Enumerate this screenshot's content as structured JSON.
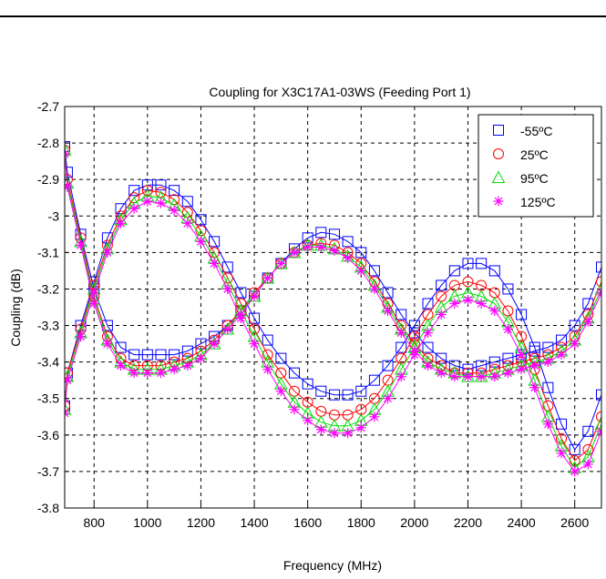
{
  "chart_data": {
    "type": "line",
    "title": "Coupling for X3C17A1-03WS (Feeding Port 1)",
    "xlabel": "Frequency (MHz)",
    "ylabel": "Coupling (dB)",
    "xlim": [
      690,
      2700
    ],
    "ylim": [
      -3.8,
      -2.7
    ],
    "xticks": [
      800,
      1000,
      1200,
      1400,
      1600,
      1800,
      2000,
      2200,
      2400,
      2600
    ],
    "yticks": [
      -2.7,
      -2.8,
      -2.9,
      -3,
      -3.1,
      -3.2,
      -3.3,
      -3.4,
      -3.5,
      -3.6,
      -3.7,
      -3.8
    ],
    "grid": true,
    "legend_position": "top-right",
    "x": [
      690,
      700,
      750,
      800,
      850,
      900,
      950,
      1000,
      1050,
      1100,
      1150,
      1200,
      1250,
      1300,
      1350,
      1400,
      1450,
      1500,
      1550,
      1600,
      1650,
      1700,
      1750,
      1800,
      1850,
      1900,
      1950,
      2000,
      2050,
      2100,
      2150,
      2200,
      2250,
      2300,
      2350,
      2400,
      2450,
      2500,
      2550,
      2600,
      2650,
      2700
    ],
    "series": [
      {
        "name": "-55ºC",
        "marker": "square",
        "color": "#0000ff",
        "traces": [
          [
            -2.81,
            -2.88,
            -3.05,
            -3.2,
            -3.3,
            -3.36,
            -3.38,
            -3.38,
            -3.38,
            -3.38,
            -3.37,
            -3.35,
            -3.33,
            -3.3,
            -3.26,
            -3.22,
            -3.17,
            -3.13,
            -3.09,
            -3.06,
            -3.045,
            -3.05,
            -3.07,
            -3.1,
            -3.15,
            -3.21,
            -3.27,
            -3.32,
            -3.36,
            -3.39,
            -3.41,
            -3.42,
            -3.41,
            -3.4,
            -3.39,
            -3.38,
            -3.37,
            -3.36,
            -3.34,
            -3.3,
            -3.24,
            -3.14
          ],
          [
            -3.52,
            -3.43,
            -3.3,
            -3.18,
            -3.06,
            -2.98,
            -2.93,
            -2.915,
            -2.915,
            -2.93,
            -2.96,
            -3.01,
            -3.07,
            -3.14,
            -3.21,
            -3.28,
            -3.34,
            -3.39,
            -3.43,
            -3.46,
            -3.48,
            -3.49,
            -3.49,
            -3.48,
            -3.45,
            -3.41,
            -3.36,
            -3.3,
            -3.24,
            -3.19,
            -3.15,
            -3.13,
            -3.13,
            -3.15,
            -3.2,
            -3.27,
            -3.36,
            -3.47,
            -3.57,
            -3.64,
            -3.59,
            -3.49
          ]
        ]
      },
      {
        "name": "25ºC",
        "marker": "circle",
        "color": "#ff0000",
        "traces": [
          [
            -2.82,
            -2.9,
            -3.06,
            -3.22,
            -3.33,
            -3.39,
            -3.41,
            -3.41,
            -3.41,
            -3.4,
            -3.39,
            -3.37,
            -3.34,
            -3.3,
            -3.26,
            -3.21,
            -3.17,
            -3.13,
            -3.1,
            -3.08,
            -3.075,
            -3.08,
            -3.1,
            -3.13,
            -3.18,
            -3.24,
            -3.3,
            -3.35,
            -3.39,
            -3.41,
            -3.43,
            -3.43,
            -3.43,
            -3.42,
            -3.41,
            -3.4,
            -3.39,
            -3.38,
            -3.36,
            -3.33,
            -3.27,
            -3.18
          ],
          [
            -3.52,
            -3.43,
            -3.31,
            -3.19,
            -3.08,
            -3.0,
            -2.95,
            -2.93,
            -2.935,
            -2.955,
            -2.99,
            -3.04,
            -3.1,
            -3.17,
            -3.24,
            -3.31,
            -3.38,
            -3.43,
            -3.48,
            -3.51,
            -3.535,
            -3.545,
            -3.545,
            -3.53,
            -3.5,
            -3.45,
            -3.39,
            -3.33,
            -3.27,
            -3.22,
            -3.19,
            -3.18,
            -3.19,
            -3.21,
            -3.26,
            -3.33,
            -3.42,
            -3.52,
            -3.61,
            -3.67,
            -3.64,
            -3.55
          ]
        ]
      },
      {
        "name": "95ºC",
        "marker": "triangle",
        "color": "#00dd00",
        "traces": [
          [
            -2.82,
            -2.91,
            -3.07,
            -3.23,
            -3.34,
            -3.4,
            -3.42,
            -3.42,
            -3.42,
            -3.41,
            -3.4,
            -3.38,
            -3.35,
            -3.31,
            -3.26,
            -3.22,
            -3.17,
            -3.13,
            -3.1,
            -3.08,
            -3.08,
            -3.09,
            -3.11,
            -3.14,
            -3.19,
            -3.25,
            -3.31,
            -3.36,
            -3.4,
            -3.42,
            -3.43,
            -3.44,
            -3.44,
            -3.43,
            -3.42,
            -3.41,
            -3.4,
            -3.39,
            -3.37,
            -3.34,
            -3.28,
            -3.2
          ],
          [
            -3.53,
            -3.44,
            -3.32,
            -3.2,
            -3.09,
            -3.01,
            -2.965,
            -2.945,
            -2.95,
            -2.97,
            -3.005,
            -3.055,
            -3.115,
            -3.185,
            -3.26,
            -3.33,
            -3.4,
            -3.46,
            -3.51,
            -3.54,
            -3.565,
            -3.575,
            -3.575,
            -3.56,
            -3.53,
            -3.48,
            -3.42,
            -3.36,
            -3.3,
            -3.25,
            -3.22,
            -3.21,
            -3.22,
            -3.24,
            -3.29,
            -3.36,
            -3.45,
            -3.55,
            -3.63,
            -3.69,
            -3.66,
            -3.57
          ]
        ]
      },
      {
        "name": "125ºC",
        "marker": "asterisk",
        "color": "#ff00ff",
        "traces": [
          [
            -2.83,
            -2.92,
            -3.08,
            -3.24,
            -3.35,
            -3.41,
            -3.43,
            -3.43,
            -3.43,
            -3.42,
            -3.41,
            -3.39,
            -3.35,
            -3.31,
            -3.27,
            -3.22,
            -3.17,
            -3.13,
            -3.1,
            -3.085,
            -3.085,
            -3.095,
            -3.115,
            -3.15,
            -3.2,
            -3.26,
            -3.32,
            -3.37,
            -3.41,
            -3.43,
            -3.44,
            -3.44,
            -3.44,
            -3.44,
            -3.43,
            -3.42,
            -3.41,
            -3.4,
            -3.38,
            -3.35,
            -3.29,
            -3.21
          ],
          [
            -3.54,
            -3.45,
            -3.33,
            -3.21,
            -3.1,
            -3.02,
            -2.98,
            -2.96,
            -2.965,
            -2.985,
            -3.02,
            -3.07,
            -3.13,
            -3.2,
            -3.28,
            -3.35,
            -3.42,
            -3.48,
            -3.53,
            -3.56,
            -3.585,
            -3.595,
            -3.595,
            -3.58,
            -3.55,
            -3.5,
            -3.44,
            -3.38,
            -3.32,
            -3.27,
            -3.24,
            -3.23,
            -3.24,
            -3.26,
            -3.31,
            -3.38,
            -3.47,
            -3.57,
            -3.65,
            -3.7,
            -3.68,
            -3.59
          ]
        ]
      }
    ]
  }
}
